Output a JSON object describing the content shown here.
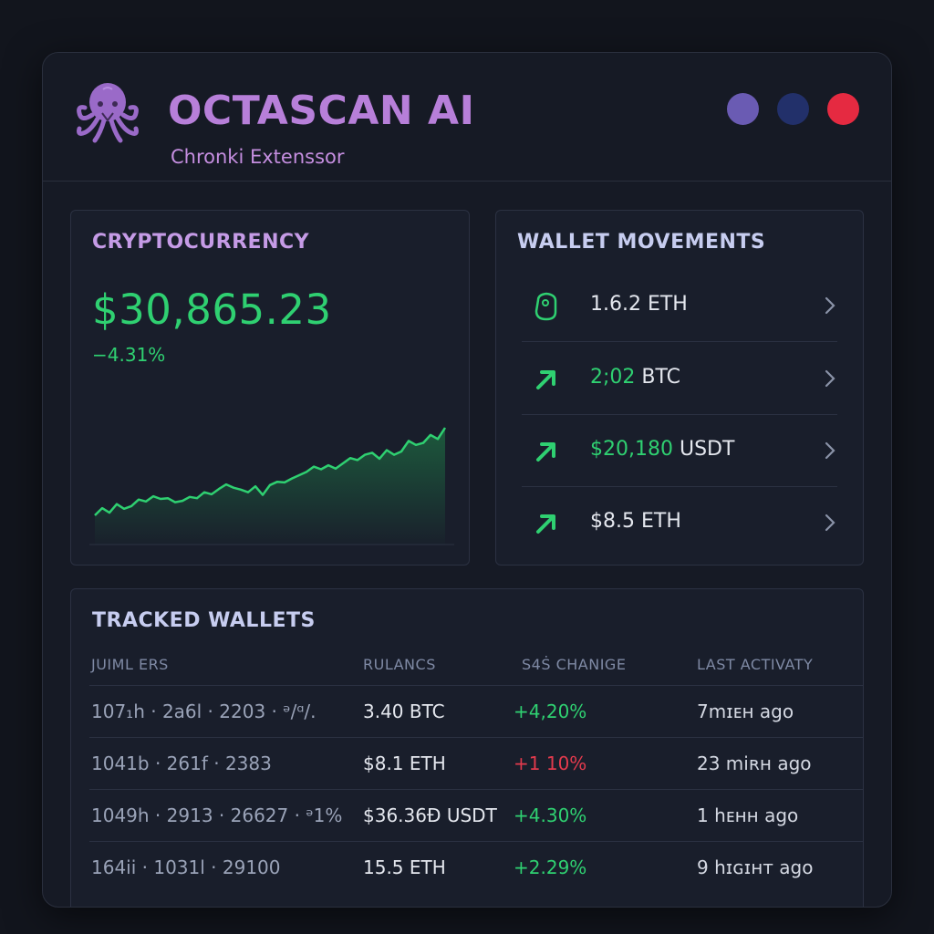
{
  "header": {
    "title": "OCTASCAN AI",
    "subtitle": "Chronki Extenssor",
    "logo_icon": "octopus-icon",
    "window_controls": [
      {
        "name": "purple-dot",
        "color": "#6a5bb3"
      },
      {
        "name": "navy-dot",
        "color": "#22306a"
      },
      {
        "name": "red-dot",
        "color": "#e52a41"
      }
    ]
  },
  "crypto": {
    "title": "CRYPTOCURRENCY",
    "price": "$30,865.23",
    "change": "−4.31%",
    "accent": "#2fd071",
    "chart_data": {
      "type": "area",
      "x": [
        0,
        1,
        2,
        3,
        4,
        5,
        6,
        7,
        8,
        9,
        10,
        11,
        12,
        13,
        14,
        15,
        16,
        17,
        18,
        19,
        20,
        21,
        22,
        23,
        24,
        25,
        26,
        27,
        28,
        29,
        30,
        31,
        32,
        33,
        34,
        35,
        36,
        37,
        38,
        39,
        40,
        41,
        42,
        43,
        44,
        45,
        46,
        47,
        48
      ],
      "values": [
        5,
        16,
        9,
        22,
        15,
        19,
        29,
        26,
        34,
        30,
        31,
        25,
        27,
        33,
        31,
        40,
        37,
        45,
        52,
        47,
        44,
        40,
        49,
        36,
        51,
        56,
        55,
        61,
        66,
        71,
        79,
        75,
        81,
        76,
        84,
        92,
        89,
        97,
        100,
        91,
        104,
        97,
        102,
        118,
        112,
        115,
        127,
        121,
        138
      ],
      "title": "",
      "xlabel": "",
      "ylabel": "",
      "grid": false
    }
  },
  "movements": {
    "title": "WALLET MOVEMENTS",
    "items": [
      {
        "icon": "wallet-coin-icon",
        "highlight": "",
        "amount": "1.6.2 ETH"
      },
      {
        "icon": "arrow-up-right-icon",
        "highlight": "2;02",
        "amount": " BTC"
      },
      {
        "icon": "arrow-up-right-icon",
        "highlight": "$20,180",
        "amount": " USDT"
      },
      {
        "icon": "arrow-up-right-icon",
        "highlight": "",
        "amount": "$8.5 ETH"
      }
    ]
  },
  "wallets": {
    "title": "TRACKED WALLETS",
    "columns": [
      "JUIML ERS",
      "RULANCS",
      "S4Ṡ CHANIGE",
      "LAST ACTIVATY"
    ],
    "rows": [
      {
        "address": "107₁h · 2a6l · 2203 · ᵊ/ᵅ/.",
        "balance": "3.40 BTC",
        "change": "+4,20%",
        "direction": "up",
        "activity": "7mɪᴇн ago"
      },
      {
        "address": "1041b · 261f · 2383",
        "balance": "$8.1 ETH",
        "change": "+1 10%",
        "direction": "down",
        "activity": "23 miʀн ago"
      },
      {
        "address": "1049h · 2913 · 26627 · ᵊ1%",
        "balance": "$36.36Ð USDT",
        "change": "+4.30%",
        "direction": "up",
        "activity": "1 hᴇнн ago"
      },
      {
        "address": "164ii · 1031l · 29100",
        "balance": "15.5 ETH",
        "change": "+2.29%",
        "direction": "up",
        "activity": "9 hɪɢɪнт ago"
      }
    ]
  }
}
